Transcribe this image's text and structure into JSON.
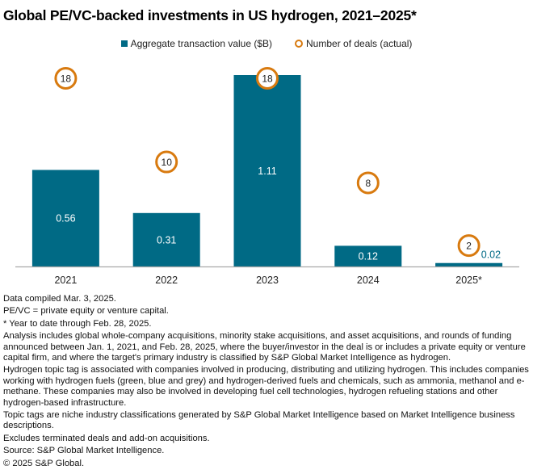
{
  "chart_data": {
    "type": "bar",
    "title": "Global PE/VC-backed investments in US hydrogen, 2021–2025*",
    "categories": [
      "2021",
      "2022",
      "2023",
      "2024",
      "2025*"
    ],
    "series": [
      {
        "name": "Aggregate transaction value ($B)",
        "kind": "bar",
        "values": [
          0.56,
          0.31,
          1.11,
          0.12,
          0.02
        ],
        "labels": [
          "0.56",
          "0.31",
          "1.11",
          "0.12",
          "0.02"
        ],
        "color": "#006a85"
      },
      {
        "name": "Number of deals (actual)",
        "kind": "marker",
        "values": [
          18,
          10,
          18,
          8,
          2
        ],
        "labels": [
          "18",
          "10",
          "18",
          "8",
          "2"
        ],
        "color": "#d87a0f"
      }
    ],
    "xlabel": "",
    "ylabel": "",
    "ylim_value": [
      0,
      1.11
    ],
    "ylim_deals": [
      0,
      18
    ],
    "grid": false,
    "legend_position": "top-center"
  },
  "notes": [
    "Data compiled Mar. 3, 2025.",
    "PE/VC = private equity or venture capital.",
    "* Year to date through Feb. 28, 2025.",
    "Analysis includes global whole-company acquisitions, minority stake acquisitions, and asset acquisitions, and rounds of funding announced between Jan. 1, 2021, and Feb. 28, 2025, where the buyer/investor in the deal is or includes a private equity or venture capital firm, and where the target's primary industry is classified by S&P Global Market Intelligence as hydrogen.",
    "Hydrogen topic tag is associated with companies involved in producing, distributing and utilizing hydrogen. This includes companies working with hydrogen fuels (green, blue and grey) and hydrogen-derived fuels and chemicals, such as ammonia, methanol and e-methane. These companies may also be involved in developing fuel cell technologies, hydrogen refueling stations and other hydrogen-based infrastructure.",
    "Topic tags are niche industry classifications generated by S&P Global Market Intelligence based on Market Intelligence business descriptions.",
    "Excludes terminated deals and add-on acquisitions.",
    "Source: S&P Global Market Intelligence.",
    "© 2025 S&P Global."
  ]
}
